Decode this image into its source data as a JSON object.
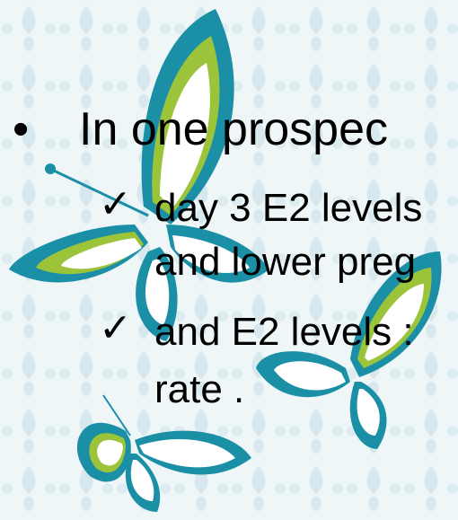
{
  "slide": {
    "bullets": [
      {
        "marker": "•",
        "text": "In one prospec",
        "sub": [
          {
            "marker": "✓",
            "lines": [
              "day 3 E2 levels",
              "and lower preg"
            ]
          },
          {
            "marker": "✓",
            "lines": [
              "and E2 levels :",
              "rate ."
            ]
          }
        ]
      }
    ]
  }
}
